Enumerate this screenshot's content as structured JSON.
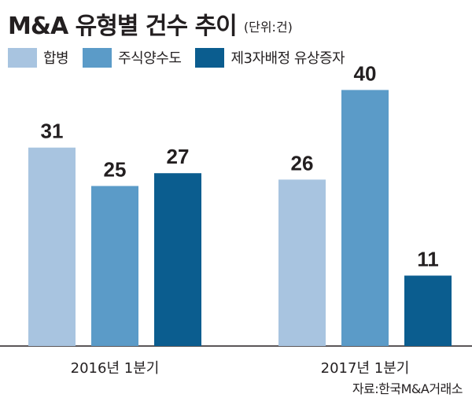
{
  "chart_data": {
    "type": "bar",
    "title": "M&A 유형별 건수 추이",
    "unit": "(단위:건)",
    "categories": [
      "2016년 1분기",
      "2017년 1분기"
    ],
    "series": [
      {
        "name": "합병",
        "color": "#a8c4e0",
        "values": [
          31,
          26
        ]
      },
      {
        "name": "주식양수도",
        "color": "#5b9bc8",
        "values": [
          25,
          40
        ]
      },
      {
        "name": "제3자배정 유상증자",
        "color": "#0b5d8f",
        "values": [
          27,
          11
        ]
      }
    ],
    "ylim": [
      0,
      43
    ],
    "xlabel": "",
    "ylabel": "",
    "legend": "top-left",
    "grid": false
  },
  "source": "자료:한국M&A거래소"
}
